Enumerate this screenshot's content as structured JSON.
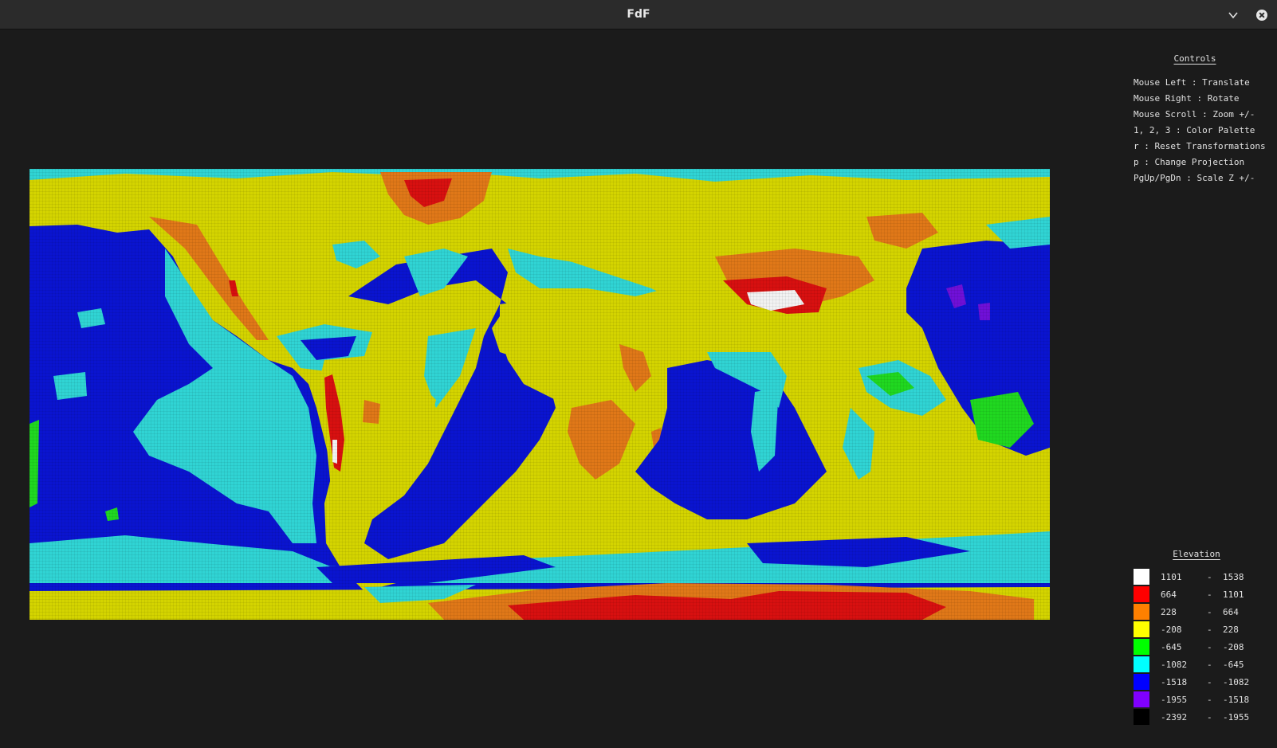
{
  "window": {
    "title": "FdF",
    "minimize_icon": "chevron-down-icon",
    "close_icon": "close-icon"
  },
  "controls": {
    "heading": "Controls",
    "lines": [
      "Mouse Left : Translate",
      "Mouse Right : Rotate",
      "Mouse Scroll : Zoom +/-",
      "1, 2, 3 : Color Palette",
      "r : Reset Transformations",
      "p : Change Projection",
      "PgUp/PgDn : Scale Z +/-"
    ]
  },
  "legend": {
    "heading": "Elevation",
    "rows": [
      {
        "min": "1101",
        "max": "1538",
        "color": "#ffffff"
      },
      {
        "min": "664",
        "max": "1101",
        "color": "#ff0000"
      },
      {
        "min": "228",
        "max": "664",
        "color": "#ff8000"
      },
      {
        "min": "-208",
        "max": "228",
        "color": "#ffff00"
      },
      {
        "min": "-645",
        "max": "-208",
        "color": "#00ff00"
      },
      {
        "min": "-1082",
        "max": "-645",
        "color": "#00ffff"
      },
      {
        "min": "-1518",
        "max": "-1082",
        "color": "#0000ff"
      },
      {
        "min": "-1955",
        "max": "-1518",
        "color": "#8000ff"
      },
      {
        "min": "-2392",
        "max": "-1955",
        "color": "#000000"
      }
    ],
    "separator": "-"
  },
  "map": {
    "colors": {
      "land": "#d4d400",
      "highland": "#e07818",
      "mountain": "#d81010",
      "peak": "#f2f2f2",
      "shelf": "#20d820",
      "slope": "#30d4d4",
      "ocean": "#0a14d0",
      "trench": "#7010d8"
    }
  }
}
